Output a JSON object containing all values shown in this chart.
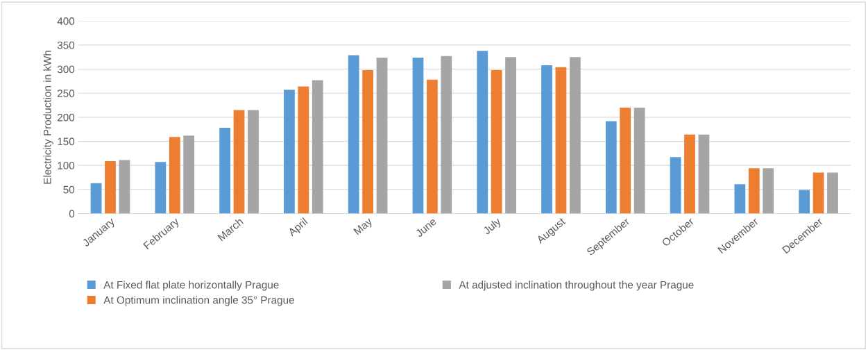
{
  "chart_data": {
    "type": "bar",
    "ylabel": "Electricity Production in kWh",
    "categories": [
      "January",
      "February",
      "March",
      "April",
      "May",
      "June",
      "July",
      "August",
      "September",
      "October",
      "November",
      "December"
    ],
    "series": [
      {
        "name": "At Fixed flat plate horizontally Prague",
        "color": "#5b9bd5",
        "values": [
          63,
          107,
          178,
          257,
          329,
          324,
          338,
          308,
          192,
          117,
          61,
          49
        ]
      },
      {
        "name": "At Optimum inclination angle 35° Prague",
        "color": "#ed7d31",
        "values": [
          109,
          159,
          215,
          264,
          298,
          278,
          298,
          304,
          220,
          164,
          94,
          85
        ]
      },
      {
        "name": "At adjusted inclination throughout the year Prague",
        "color": "#a5a5a5",
        "values": [
          111,
          162,
          215,
          277,
          324,
          327,
          325,
          325,
          220,
          164,
          94,
          85
        ]
      }
    ],
    "ylim": [
      0,
      400
    ],
    "yticks": [
      0,
      50,
      100,
      150,
      200,
      250,
      300,
      350,
      400
    ],
    "grid": "y",
    "legend": "bottom"
  }
}
